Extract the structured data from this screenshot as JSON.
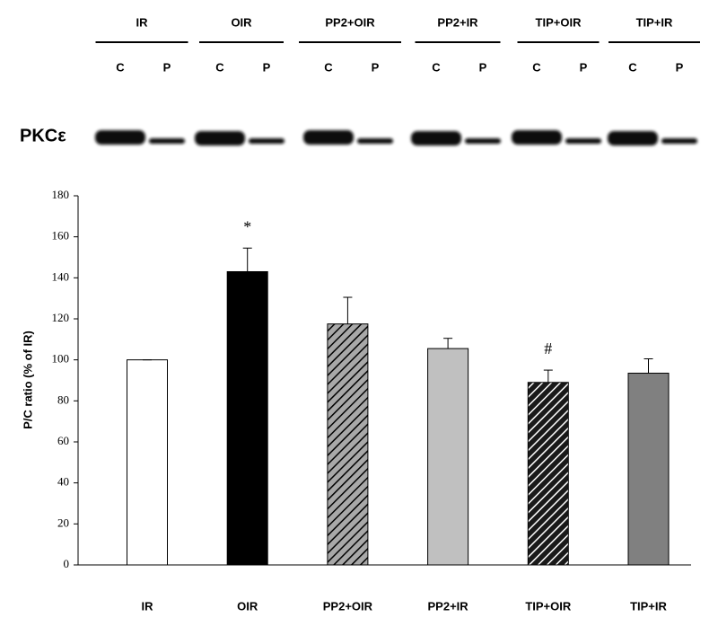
{
  "blot": {
    "groups": [
      "IR",
      "OIR",
      "PP2+OIR",
      "PP2+IR",
      "TIP+OIR",
      "TIP+IR"
    ],
    "lanes": [
      "C",
      "P"
    ],
    "protein": "PKCε"
  },
  "chart_data": {
    "type": "bar",
    "y_label": "P/C ratio (% of IR)",
    "categories": [
      "IR",
      "OIR",
      "PP2+OIR",
      "PP2+IR",
      "TIP+OIR",
      "TIP+IR"
    ],
    "values": [
      100,
      143,
      117.5,
      105.5,
      89,
      93.5
    ],
    "errors": [
      0,
      11.5,
      13,
      5,
      6,
      7
    ],
    "colors": [
      "#ffffff",
      "#000000",
      "#a8a8a8",
      "#c0c0c0",
      "#1a1a1a",
      "#808080"
    ],
    "hatch_colors": [
      null,
      null,
      "#000000",
      null,
      "#ffffff",
      null
    ],
    "annotations": [
      {
        "text": "*",
        "category": "OIR"
      },
      {
        "text": "#",
        "category": "TIP+OIR"
      }
    ],
    "ylim": [
      0,
      180
    ],
    "yticks": [
      0,
      20,
      40,
      60,
      80,
      100,
      120,
      140,
      160,
      180
    ],
    "grid": false
  }
}
